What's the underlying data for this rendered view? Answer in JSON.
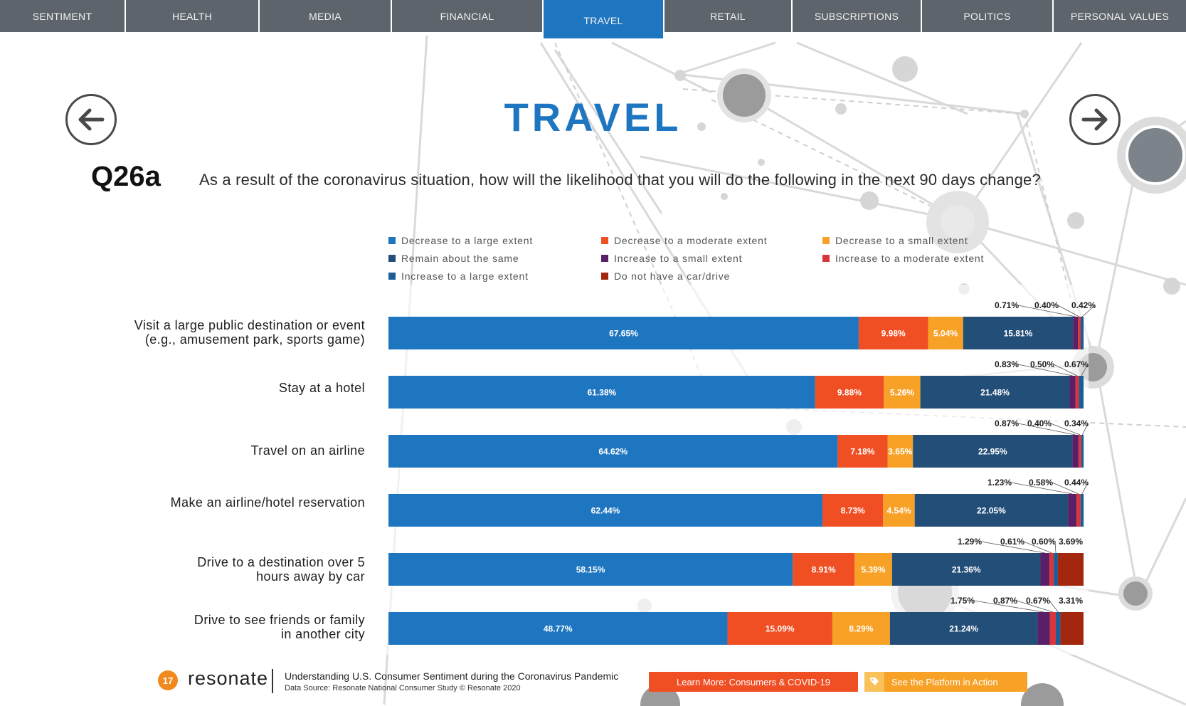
{
  "nav": {
    "tabs": [
      {
        "label": "SENTIMENT",
        "active": false
      },
      {
        "label": "HEALTH",
        "active": false
      },
      {
        "label": "MEDIA",
        "active": false
      },
      {
        "label": "FINANCIAL",
        "active": false
      },
      {
        "label": "TRAVEL",
        "active": true
      },
      {
        "label": "RETAIL",
        "active": false
      },
      {
        "label": "SUBSCRIPTIONS",
        "active": false
      },
      {
        "label": "POLITICS",
        "active": false
      },
      {
        "label": "PERSONAL VALUES",
        "active": false
      }
    ],
    "prev_icon": "arrow-left-icon",
    "next_icon": "arrow-right-icon"
  },
  "page": {
    "title": "TRAVEL",
    "question_number": "Q26a",
    "question_text": "As a result of the coronavirus situation, how will the likelihood that you will do the following in the next 90 days change?"
  },
  "chart_data": {
    "type": "bar",
    "orientation": "horizontal",
    "stacked": true,
    "normalized": true,
    "legend_position": "top",
    "grid": false,
    "categories": [
      "Visit a large public destination or event (e.g., amusement park, sports game)",
      "Stay at a hotel",
      "Travel on an airline",
      "Make an airline/hotel reservation",
      "Drive to a destination over 5 hours away by car",
      "Drive to see friends or family in another city"
    ],
    "category_lines": [
      [
        "Visit a large public destination or event",
        "(e.g., amusement park, sports game)"
      ],
      [
        "Stay at a hotel"
      ],
      [
        "Travel on an airline"
      ],
      [
        "Make an airline/hotel reservation"
      ],
      [
        "Drive to a destination over 5",
        "hours away by car"
      ],
      [
        "Drive to see friends or family",
        "in another city"
      ]
    ],
    "series": [
      {
        "name": "Decrease to a large extent",
        "color": "#1f76c0",
        "values": [
          67.65,
          61.38,
          64.62,
          62.44,
          58.15,
          48.77
        ],
        "labels": [
          "67.65%",
          "61.38%",
          "64.62%",
          "62.44%",
          "58.15%",
          "48.77%"
        ]
      },
      {
        "name": "Decrease to a moderate extent",
        "color": "#f04e23",
        "values": [
          9.98,
          9.88,
          7.18,
          8.73,
          8.91,
          15.09
        ],
        "labels": [
          "9.98%",
          "9.88%",
          "7.18%",
          "8.73%",
          "8.91%",
          "15.09%"
        ]
      },
      {
        "name": "Decrease to a small extent",
        "color": "#f7a127",
        "values": [
          5.04,
          5.26,
          3.65,
          4.54,
          5.39,
          8.29
        ],
        "labels": [
          "5.04%",
          "5.26%",
          "3.65%",
          "4.54%",
          "5.39%",
          "8.29%"
        ]
      },
      {
        "name": "Remain about the same",
        "color": "#234e78",
        "values": [
          15.81,
          21.48,
          22.95,
          22.05,
          21.36,
          21.24
        ],
        "labels": [
          "15.81%",
          "21.48%",
          "22.95%",
          "22.05%",
          "21.36%",
          "21.24%"
        ]
      },
      {
        "name": "Increase to a small extent",
        "color": "#5a2067",
        "values": [
          0.71,
          0.83,
          0.87,
          1.23,
          1.29,
          1.75
        ],
        "labels": [
          "0.71%",
          "0.83%",
          "0.87%",
          "1.23%",
          "1.29%",
          "1.75%"
        ]
      },
      {
        "name": "Increase to a moderate extent",
        "color": "#d8363a",
        "values": [
          0.4,
          0.5,
          0.4,
          0.58,
          0.61,
          0.87
        ],
        "labels": [
          "0.40%",
          "0.50%",
          "0.40%",
          "0.58%",
          "0.61%",
          "0.87%"
        ]
      },
      {
        "name": "Increase to a large extent",
        "color": "#1b5e96",
        "values": [
          0.42,
          0.67,
          0.34,
          0.44,
          0.6,
          0.67
        ],
        "labels": [
          "0.42%",
          "0.67%",
          "0.34%",
          "0.44%",
          "0.60%",
          "0.67%"
        ]
      },
      {
        "name": "Do not have a car/drive",
        "color": "#a3260f",
        "values": [
          0,
          0,
          0,
          0,
          3.69,
          3.31
        ],
        "labels": [
          "",
          "",
          "",
          "",
          "3.69%",
          "3.31%"
        ]
      }
    ]
  },
  "footer": {
    "page_number": "17",
    "brand": "resonate",
    "title": "Understanding U.S. Consumer Sentiment during the Coronavirus Pandemic",
    "source": "Data Source: Resonate National Consumer Study © Resonate 2020",
    "learn_more_label": "Learn More: Consumers & COVID-19",
    "platform_label": "See the Platform in Action",
    "platform_icon": "tag-icon"
  }
}
